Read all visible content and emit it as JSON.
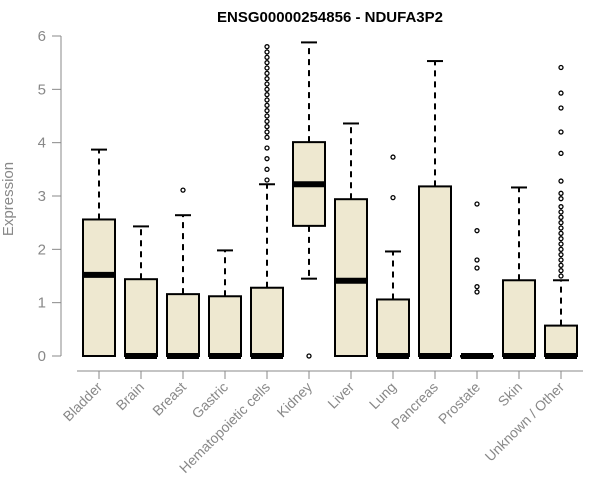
{
  "chart_data": {
    "type": "boxplot",
    "title": "ENSG00000254856 - NDUFA3P2",
    "ylabel": "Expression",
    "xlabel": "",
    "ylim": [
      0,
      6
    ],
    "yticks": [
      0,
      1,
      2,
      3,
      4,
      5,
      6
    ],
    "box_fill": "#EEE8D0",
    "categories": [
      "Bladder",
      "Brain",
      "Breast",
      "Gastric",
      "Hematopoietic cells",
      "Kidney",
      "Liver",
      "Lung",
      "Pancreas",
      "Prostate",
      "Skin",
      "Unknown / Other"
    ],
    "series": [
      {
        "category": "Bladder",
        "lower_whisker": 0.0,
        "q1": 0.0,
        "median": 1.52,
        "q3": 2.56,
        "upper_whisker": 3.87,
        "outliers": []
      },
      {
        "category": "Brain",
        "lower_whisker": 0.0,
        "q1": 0.0,
        "median": 0.0,
        "q3": 1.44,
        "upper_whisker": 2.43,
        "outliers": []
      },
      {
        "category": "Breast",
        "lower_whisker": 0.0,
        "q1": 0.0,
        "median": 0.0,
        "q3": 1.16,
        "upper_whisker": 2.64,
        "outliers": [
          3.11
        ]
      },
      {
        "category": "Gastric",
        "lower_whisker": 0.0,
        "q1": 0.0,
        "median": 0.0,
        "q3": 1.12,
        "upper_whisker": 1.98,
        "outliers": []
      },
      {
        "category": "Hematopoietic cells",
        "lower_whisker": 0.0,
        "q1": 0.0,
        "median": 0.0,
        "q3": 1.28,
        "upper_whisker": 3.22,
        "outliers": [
          3.3,
          3.5,
          3.7,
          3.9,
          4.1,
          4.2,
          4.3,
          4.4,
          4.5,
          4.6,
          4.7,
          4.8,
          4.9,
          5.0,
          5.1,
          5.2,
          5.3,
          5.4,
          5.5,
          5.6,
          5.7,
          5.8
        ]
      },
      {
        "category": "Kidney",
        "lower_whisker": 1.45,
        "q1": 2.44,
        "median": 3.22,
        "q3": 4.01,
        "upper_whisker": 5.88,
        "outliers": [
          0.0
        ]
      },
      {
        "category": "Liver",
        "lower_whisker": 0.0,
        "q1": 0.0,
        "median": 1.41,
        "q3": 2.94,
        "upper_whisker": 4.36,
        "outliers": []
      },
      {
        "category": "Lung",
        "lower_whisker": 0.0,
        "q1": 0.0,
        "median": 0.0,
        "q3": 1.06,
        "upper_whisker": 1.96,
        "outliers": [
          2.97,
          3.73
        ]
      },
      {
        "category": "Pancreas",
        "lower_whisker": 0.0,
        "q1": 0.0,
        "median": 0.0,
        "q3": 3.18,
        "upper_whisker": 5.53,
        "outliers": []
      },
      {
        "category": "Prostate",
        "lower_whisker": 0.0,
        "q1": 0.0,
        "median": 0.0,
        "q3": 0.0,
        "upper_whisker": 0.0,
        "outliers": [
          1.2,
          1.3,
          1.65,
          1.8,
          2.35,
          2.85
        ]
      },
      {
        "category": "Skin",
        "lower_whisker": 0.0,
        "q1": 0.0,
        "median": 0.0,
        "q3": 1.42,
        "upper_whisker": 3.16,
        "outliers": []
      },
      {
        "category": "Unknown / Other",
        "lower_whisker": 0.0,
        "q1": 0.0,
        "median": 0.0,
        "q3": 0.57,
        "upper_whisker": 1.42,
        "outliers": [
          1.5,
          1.6,
          1.7,
          1.8,
          1.9,
          2.0,
          2.1,
          2.2,
          2.3,
          2.4,
          2.5,
          2.6,
          2.7,
          2.8,
          2.95,
          3.05,
          3.28,
          3.8,
          4.2,
          4.65,
          4.93,
          5.41
        ]
      }
    ]
  }
}
